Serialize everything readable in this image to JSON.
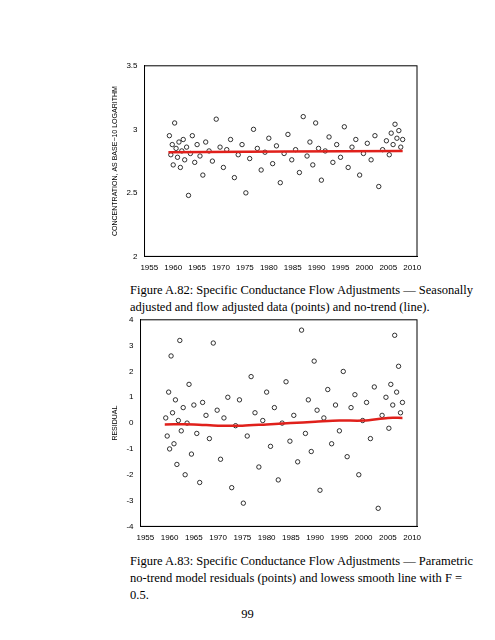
{
  "chart_data": [
    {
      "type": "scatter",
      "y_label": "CONCENTRATION, AS BASE−10 LOGARITHM",
      "xlim": [
        1954,
        2011
      ],
      "xticks": [
        1955,
        1960,
        1965,
        1970,
        1975,
        1980,
        1985,
        1990,
        1995,
        2000,
        2005,
        2010
      ],
      "ylim": [
        2,
        3.5
      ],
      "yticks": [
        2,
        2.5,
        3,
        3.5
      ],
      "grid": false,
      "series": [
        {
          "type": "scatter",
          "color": "#000000",
          "marker": "circle",
          "x": [
            1959.2,
            1959.5,
            1959.8,
            1960.0,
            1960.3,
            1960.6,
            1960.9,
            1961.2,
            1961.5,
            1961.8,
            1962.1,
            1962.4,
            1962.8,
            1963.2,
            1963.6,
            1964.0,
            1964.5,
            1965.0,
            1965.6,
            1966.2,
            1966.8,
            1967.5,
            1968.2,
            1969.0,
            1969.8,
            1970.5,
            1971.2,
            1972.0,
            1972.8,
            1973.6,
            1974.4,
            1975.2,
            1976.0,
            1976.8,
            1977.6,
            1978.4,
            1979.2,
            1980.0,
            1980.8,
            1981.6,
            1982.4,
            1983.2,
            1984.0,
            1984.8,
            1985.6,
            1986.4,
            1987.2,
            1988.0,
            1988.6,
            1989.2,
            1989.8,
            1990.4,
            1991.0,
            1991.8,
            1992.6,
            1993.4,
            1994.2,
            1995.0,
            1995.8,
            1996.6,
            1997.4,
            1998.2,
            1999.0,
            1999.8,
            2000.6,
            2001.4,
            2002.2,
            2003.0,
            2003.8,
            2004.6,
            2005.2,
            2005.6,
            2006.0,
            2006.4,
            2006.8,
            2007.2,
            2007.6,
            2008.0
          ],
          "values": [
            2.95,
            2.8,
            2.88,
            2.72,
            3.05,
            2.85,
            2.78,
            2.9,
            2.7,
            2.83,
            2.92,
            2.76,
            2.86,
            2.48,
            2.81,
            2.95,
            2.74,
            2.88,
            2.79,
            2.64,
            2.9,
            2.83,
            2.75,
            3.08,
            2.86,
            2.7,
            2.84,
            2.92,
            2.62,
            2.8,
            2.88,
            2.5,
            2.77,
            3.0,
            2.85,
            2.68,
            2.82,
            2.93,
            2.73,
            2.87,
            2.58,
            2.81,
            2.96,
            2.76,
            2.84,
            2.66,
            3.1,
            2.79,
            2.9,
            2.72,
            3.05,
            2.85,
            2.6,
            2.83,
            2.94,
            2.74,
            2.88,
            2.78,
            3.02,
            2.7,
            2.86,
            2.92,
            2.64,
            2.81,
            2.89,
            2.76,
            2.95,
            2.55,
            2.84,
            2.91,
            2.8,
            2.97,
            2.88,
            3.04,
            2.93,
            2.99,
            2.86,
            2.92
          ]
        },
        {
          "type": "line",
          "color": "#e0201b",
          "line_style": "solid",
          "x": [
            1959,
            2008
          ],
          "values": [
            2.82,
            2.83
          ]
        }
      ]
    },
    {
      "type": "scatter",
      "y_label": "RESIDUAL",
      "xlim": [
        1954,
        2011
      ],
      "xticks": [
        1955,
        1960,
        1965,
        1970,
        1975,
        1980,
        1985,
        1990,
        1995,
        2000,
        2005,
        2010
      ],
      "ylim": [
        -4,
        4
      ],
      "yticks": [
        -4,
        -3,
        -2,
        -1,
        0,
        1,
        2,
        3,
        4
      ],
      "grid": false,
      "series": [
        {
          "type": "scatter",
          "color": "#000000",
          "marker": "circle",
          "x": [
            1959.2,
            1959.5,
            1959.8,
            1960.0,
            1960.3,
            1960.6,
            1960.9,
            1961.2,
            1961.5,
            1961.8,
            1962.1,
            1962.4,
            1962.8,
            1963.2,
            1963.6,
            1964.0,
            1964.5,
            1965.0,
            1965.6,
            1966.2,
            1966.8,
            1967.5,
            1968.2,
            1969.0,
            1969.8,
            1970.5,
            1971.2,
            1972.0,
            1972.8,
            1973.6,
            1974.4,
            1975.2,
            1976.0,
            1976.8,
            1977.6,
            1978.4,
            1979.2,
            1980.0,
            1980.8,
            1981.6,
            1982.4,
            1983.2,
            1984.0,
            1984.8,
            1985.6,
            1986.4,
            1987.2,
            1988.0,
            1988.6,
            1989.2,
            1989.8,
            1990.4,
            1991.0,
            1991.8,
            1992.6,
            1993.4,
            1994.2,
            1995.0,
            1995.8,
            1996.6,
            1997.4,
            1998.2,
            1999.0,
            1999.8,
            2000.6,
            2001.4,
            2002.2,
            2003.0,
            2003.8,
            2004.6,
            2005.2,
            2005.6,
            2006.0,
            2006.4,
            2006.8,
            2007.2,
            2007.6,
            2008.0
          ],
          "values": [
            0.2,
            -0.5,
            1.2,
            -1.0,
            2.6,
            0.4,
            -0.8,
            0.9,
            -1.6,
            0.1,
            3.2,
            -0.3,
            0.6,
            -2.0,
            0.0,
            1.5,
            -1.2,
            0.7,
            -0.4,
            -2.3,
            0.8,
            0.3,
            -0.6,
            3.1,
            0.5,
            -1.4,
            0.2,
            1.0,
            -2.5,
            -0.1,
            0.9,
            -3.1,
            -0.5,
            1.8,
            0.4,
            -1.7,
            0.1,
            1.2,
            -0.9,
            0.6,
            -2.2,
            0.0,
            1.6,
            -0.7,
            0.3,
            -1.5,
            3.6,
            -0.4,
            0.9,
            -1.1,
            2.4,
            0.5,
            -2.6,
            0.2,
            1.3,
            -0.8,
            0.7,
            -0.3,
            2.0,
            -1.3,
            0.6,
            1.1,
            -2.0,
            0.1,
            0.8,
            -0.6,
            1.4,
            -3.3,
            0.3,
            1.0,
            -0.2,
            1.5,
            0.7,
            3.4,
            1.2,
            2.2,
            0.4,
            0.8
          ]
        },
        {
          "type": "line",
          "color": "#e0201b",
          "line_style": "solid",
          "x": [
            1959,
            1965,
            1970,
            1975,
            1980,
            1985,
            1990,
            1995,
            2000,
            2005,
            2008
          ],
          "values": [
            -0.05,
            -0.05,
            -0.1,
            -0.1,
            -0.05,
            0,
            0.05,
            0.1,
            0.1,
            0.2,
            0.2
          ]
        }
      ]
    }
  ],
  "captions": [
    "Figure A.82: Specific Conductance Flow Adjustments — Seasonally adjusted and flow adjusted data (points) and no-trend (line).",
    "Figure A.83: Specific Conductance Flow Adjustments — Parametric no-trend model residuals (points) and lowess smooth line with F = 0.5."
  ],
  "page_number": "99"
}
